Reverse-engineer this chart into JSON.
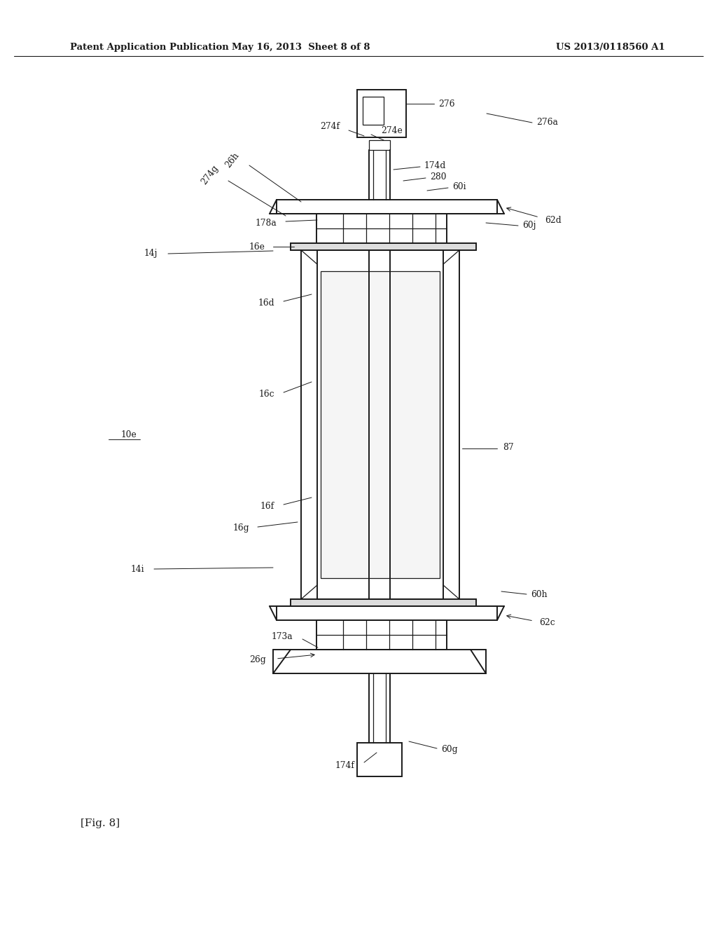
{
  "title_left": "Patent Application Publication",
  "title_mid": "May 16, 2013  Sheet 8 of 8",
  "title_right": "US 2013/0118560 A1",
  "fig_label": "[Fig. 8]",
  "bg_color": "#ffffff",
  "line_color": "#1a1a1a"
}
